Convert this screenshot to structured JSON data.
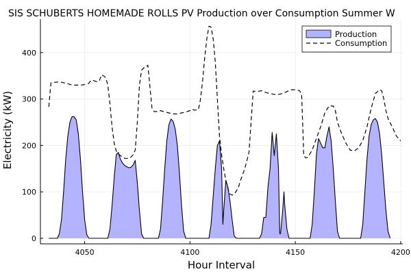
{
  "chart_data": {
    "type": "area",
    "title": "SIS SCHUBERTS HOMEMADE ROLLS PV Production over Consumption Summer W",
    "xlabel": "Hour Interval",
    "ylabel": "Electricity (kW)",
    "xlim": [
      4029,
      4201
    ],
    "ylim": [
      -12,
      472
    ],
    "x_ticks": [
      4050,
      4100,
      4150,
      4200
    ],
    "y_ticks": [
      0,
      100,
      200,
      300,
      400
    ],
    "grid": true,
    "legend_position": "top-right",
    "series": [
      {
        "name": "Production",
        "style": "filled-area",
        "fill_color": "#b3b3ff",
        "line_color": "#000000",
        "points": [
          [
            4033,
            0
          ],
          [
            4037,
            0
          ],
          [
            4038,
            10
          ],
          [
            4039,
            40
          ],
          [
            4040,
            100
          ],
          [
            4041,
            170
          ],
          [
            4042,
            220
          ],
          [
            4043,
            250
          ],
          [
            4044,
            262
          ],
          [
            4045,
            262
          ],
          [
            4046,
            255
          ],
          [
            4047,
            225
          ],
          [
            4048,
            170
          ],
          [
            4049,
            100
          ],
          [
            4050,
            40
          ],
          [
            4051,
            8
          ],
          [
            4052,
            0
          ],
          [
            4061,
            0
          ],
          [
            4062,
            20
          ],
          [
            4063,
            70
          ],
          [
            4064,
            130
          ],
          [
            4065,
            180
          ],
          [
            4066,
            185
          ],
          [
            4067,
            170
          ],
          [
            4068,
            162
          ],
          [
            4069,
            157
          ],
          [
            4070,
            154
          ],
          [
            4071,
            152
          ],
          [
            4072,
            153
          ],
          [
            4073,
            158
          ],
          [
            4074,
            168
          ],
          [
            4075,
            120
          ],
          [
            4076,
            60
          ],
          [
            4077,
            10
          ],
          [
            4078,
            0
          ],
          [
            4085,
            0
          ],
          [
            4086,
            20
          ],
          [
            4087,
            80
          ],
          [
            4088,
            150
          ],
          [
            4089,
            210
          ],
          [
            4090,
            245
          ],
          [
            4091,
            257
          ],
          [
            4092,
            252
          ],
          [
            4093,
            235
          ],
          [
            4094,
            200
          ],
          [
            4095,
            140
          ],
          [
            4096,
            70
          ],
          [
            4097,
            15
          ],
          [
            4098,
            0
          ],
          [
            4109,
            0
          ],
          [
            4110,
            30
          ],
          [
            4111,
            90
          ],
          [
            4112,
            150
          ],
          [
            4113,
            200
          ],
          [
            4114,
            210
          ],
          [
            4115,
            150
          ],
          [
            4115.6,
            30
          ],
          [
            4116,
            60
          ],
          [
            4117,
            125
          ],
          [
            4118,
            110
          ],
          [
            4119,
            80
          ],
          [
            4120,
            40
          ],
          [
            4121,
            5
          ],
          [
            4122,
            0
          ],
          [
            4133,
            0
          ],
          [
            4134,
            10
          ],
          [
            4135,
            45
          ],
          [
            4136,
            45
          ],
          [
            4137,
            110
          ],
          [
            4138,
            150
          ],
          [
            4139,
            228
          ],
          [
            4140,
            178
          ],
          [
            4141,
            225
          ],
          [
            4142,
            150
          ],
          [
            4142.6,
            10
          ],
          [
            4143,
            10
          ],
          [
            4144,
            60
          ],
          [
            4144.6,
            100
          ],
          [
            4145,
            70
          ],
          [
            4146,
            20
          ],
          [
            4147,
            0
          ],
          [
            4157,
            0
          ],
          [
            4158,
            30
          ],
          [
            4159,
            100
          ],
          [
            4160,
            180
          ],
          [
            4161,
            215
          ],
          [
            4162,
            205
          ],
          [
            4163,
            195
          ],
          [
            4164,
            195
          ],
          [
            4165,
            220
          ],
          [
            4166,
            240
          ],
          [
            4167,
            210
          ],
          [
            4168,
            150
          ],
          [
            4169,
            80
          ],
          [
            4170,
            15
          ],
          [
            4171,
            0
          ],
          [
            4181,
            0
          ],
          [
            4182,
            30
          ],
          [
            4183,
            100
          ],
          [
            4184,
            170
          ],
          [
            4185,
            220
          ],
          [
            4186,
            245
          ],
          [
            4187,
            255
          ],
          [
            4188,
            258
          ],
          [
            4189,
            250
          ],
          [
            4190,
            225
          ],
          [
            4191,
            180
          ],
          [
            4192,
            120
          ],
          [
            4193,
            60
          ],
          [
            4194,
            15
          ],
          [
            4195,
            0
          ]
        ]
      },
      {
        "name": "Consumption",
        "style": "dashed-line",
        "line_color": "#000000",
        "points": [
          [
            4033,
            283
          ],
          [
            4034,
            335
          ],
          [
            4036,
            336
          ],
          [
            4038,
            337
          ],
          [
            4040,
            335
          ],
          [
            4042,
            333
          ],
          [
            4044,
            330
          ],
          [
            4046,
            330
          ],
          [
            4048,
            330
          ],
          [
            4050,
            331
          ],
          [
            4052,
            334
          ],
          [
            4053,
            340
          ],
          [
            4054,
            340
          ],
          [
            4056,
            337
          ],
          [
            4057,
            340
          ],
          [
            4058,
            352
          ],
          [
            4059,
            350
          ],
          [
            4060,
            346
          ],
          [
            4061,
            330
          ],
          [
            4062,
            290
          ],
          [
            4063,
            240
          ],
          [
            4064,
            205
          ],
          [
            4065,
            188
          ],
          [
            4066,
            182
          ],
          [
            4067,
            178
          ],
          [
            4068,
            175
          ],
          [
            4069,
            172
          ],
          [
            4070,
            172
          ],
          [
            4071,
            172
          ],
          [
            4072,
            175
          ],
          [
            4073,
            180
          ],
          [
            4074,
            190
          ],
          [
            4075,
            250
          ],
          [
            4076,
            330
          ],
          [
            4077,
            362
          ],
          [
            4078,
            367
          ],
          [
            4079,
            368
          ],
          [
            4080,
            373
          ],
          [
            4082,
            278
          ],
          [
            4083,
            273
          ],
          [
            4084,
            273
          ],
          [
            4086,
            275
          ],
          [
            4088,
            272
          ],
          [
            4090,
            270
          ],
          [
            4092,
            268
          ],
          [
            4094,
            268
          ],
          [
            4096,
            270
          ],
          [
            4098,
            272
          ],
          [
            4100,
            275
          ],
          [
            4101,
            278
          ],
          [
            4102,
            276
          ],
          [
            4104,
            277
          ],
          [
            4105,
            300
          ],
          [
            4106,
            340
          ],
          [
            4107,
            390
          ],
          [
            4108,
            430
          ],
          [
            4109,
            457
          ],
          [
            4110,
            455
          ],
          [
            4111,
            430
          ],
          [
            4112,
            380
          ],
          [
            4113,
            300
          ],
          [
            4114,
            220
          ],
          [
            4115,
            180
          ],
          [
            4116,
            150
          ],
          [
            4117,
            125
          ],
          [
            4118,
            108
          ],
          [
            4119,
            95
          ],
          [
            4120,
            93
          ],
          [
            4121,
            95
          ],
          [
            4122,
            102
          ],
          [
            4123,
            110
          ],
          [
            4124,
            125
          ],
          [
            4126,
            150
          ],
          [
            4128,
            185
          ],
          [
            4130,
            317
          ],
          [
            4132,
            316
          ],
          [
            4134,
            318
          ],
          [
            4136,
            314
          ],
          [
            4138,
            312
          ],
          [
            4140,
            310
          ],
          [
            4142,
            310
          ],
          [
            4144,
            312
          ],
          [
            4146,
            316
          ],
          [
            4148,
            320
          ],
          [
            4150,
            320
          ],
          [
            4152,
            318
          ],
          [
            4153,
            310
          ],
          [
            4154,
            178
          ],
          [
            4155,
            173
          ],
          [
            4156,
            175
          ],
          [
            4158,
            190
          ],
          [
            4160,
            215
          ],
          [
            4162,
            240
          ],
          [
            4164,
            270
          ],
          [
            4166,
            285
          ],
          [
            4168,
            285
          ],
          [
            4169,
            275
          ],
          [
            4170,
            250
          ],
          [
            4172,
            225
          ],
          [
            4174,
            205
          ],
          [
            4176,
            190
          ],
          [
            4178,
            188
          ],
          [
            4180,
            195
          ],
          [
            4182,
            210
          ],
          [
            4184,
            240
          ],
          [
            4186,
            280
          ],
          [
            4188,
            312
          ],
          [
            4190,
            320
          ],
          [
            4191,
            318
          ],
          [
            4192,
            300
          ],
          [
            4193,
            275
          ],
          [
            4194,
            258
          ],
          [
            4196,
            240
          ],
          [
            4198,
            220
          ],
          [
            4200,
            210
          ]
        ]
      }
    ]
  }
}
